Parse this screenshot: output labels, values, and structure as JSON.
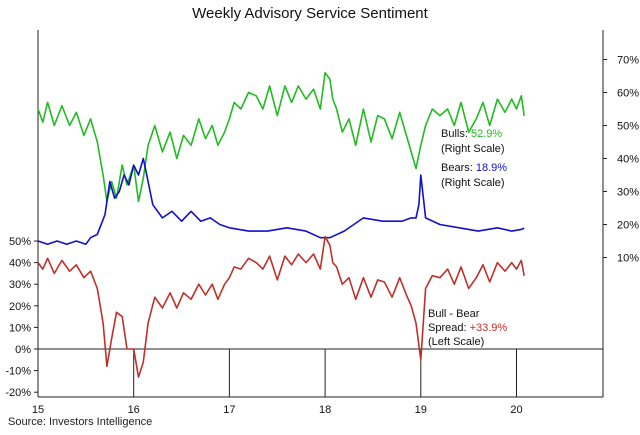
{
  "chart_data": {
    "type": "line",
    "title": "Weekly Advisory Service Sentiment",
    "source": "Source: Investors Intelligence",
    "x_ticks": [
      "15",
      "16",
      "17",
      "18",
      "19",
      "20"
    ],
    "x_range": [
      2015.0,
      2020.25
    ],
    "right_axis": {
      "ticks": [
        "10%",
        "20%",
        "30%",
        "40%",
        "50%",
        "60%",
        "70%"
      ],
      "range": [
        0,
        70
      ]
    },
    "left_axis": {
      "ticks": [
        "-20%",
        "-10%",
        "0%",
        "10%",
        "20%",
        "30%",
        "40%",
        "50%"
      ],
      "range": [
        -20,
        50
      ]
    },
    "series": [
      {
        "name": "Bulls",
        "axis": "right",
        "color": "#22bb22",
        "x": [
          2015.0,
          2015.05,
          2015.1,
          2015.17,
          2015.25,
          2015.33,
          2015.4,
          2015.48,
          2015.55,
          2015.62,
          2015.68,
          2015.72,
          2015.77,
          2015.82,
          2015.88,
          2015.93,
          2016.0,
          2016.05,
          2016.1,
          2016.15,
          2016.22,
          2016.3,
          2016.38,
          2016.45,
          2016.52,
          2016.6,
          2016.68,
          2016.75,
          2016.82,
          2016.88,
          2016.95,
          2017.0,
          2017.05,
          2017.12,
          2017.2,
          2017.28,
          2017.35,
          2017.42,
          2017.5,
          2017.58,
          2017.65,
          2017.72,
          2017.8,
          2017.88,
          2017.95,
          2018.0,
          2018.05,
          2018.08,
          2018.12,
          2018.18,
          2018.25,
          2018.32,
          2018.4,
          2018.48,
          2018.55,
          2018.62,
          2018.7,
          2018.78,
          2018.85,
          2018.9,
          2018.95,
          2019.0,
          2019.05,
          2019.12,
          2019.2,
          2019.28,
          2019.35,
          2019.42,
          2019.5,
          2019.58,
          2019.65,
          2019.72,
          2019.8,
          2019.88,
          2019.95,
          2020.0,
          2020.05,
          2020.08
        ],
        "values": [
          55,
          51,
          57,
          50,
          56,
          50,
          54,
          47,
          52,
          45,
          35,
          27,
          33,
          28,
          38,
          32,
          38,
          27,
          34,
          44,
          50,
          42,
          48,
          40,
          47,
          44,
          52,
          46,
          50,
          44,
          48,
          52,
          57,
          55,
          60,
          59,
          55,
          62,
          53,
          62,
          57,
          62,
          58,
          61,
          55,
          66,
          64,
          58,
          55,
          48,
          52,
          44,
          55,
          45,
          53,
          52,
          46,
          54,
          47,
          42,
          37,
          44,
          50,
          55,
          53,
          55,
          50,
          57,
          48,
          52,
          57,
          50,
          58,
          54,
          58,
          55,
          59,
          52.9
        ]
      },
      {
        "name": "Bears",
        "axis": "right",
        "color": "#1111cc",
        "x": [
          2015.0,
          2015.1,
          2015.2,
          2015.3,
          2015.4,
          2015.5,
          2015.55,
          2015.62,
          2015.7,
          2015.75,
          2015.8,
          2015.85,
          2015.9,
          2015.95,
          2016.0,
          2016.05,
          2016.1,
          2016.15,
          2016.2,
          2016.3,
          2016.4,
          2016.5,
          2016.6,
          2016.7,
          2016.8,
          2016.9,
          2017.0,
          2017.2,
          2017.4,
          2017.6,
          2017.8,
          2017.95,
          2018.05,
          2018.2,
          2018.4,
          2018.6,
          2018.8,
          2018.9,
          2018.95,
          2018.98,
          2019.0,
          2019.05,
          2019.2,
          2019.4,
          2019.6,
          2019.8,
          2019.95,
          2020.05,
          2020.08
        ],
        "values": [
          15,
          14,
          15,
          14,
          15,
          14,
          16,
          17,
          23,
          33,
          28,
          30,
          35,
          32,
          38,
          35,
          40,
          33,
          26,
          22,
          24,
          21,
          24,
          21,
          22,
          20,
          19,
          18,
          18,
          19,
          18,
          16,
          16,
          18,
          22,
          21,
          21,
          22,
          22,
          26,
          35,
          22,
          20,
          19,
          18,
          19,
          18,
          18.5,
          18.9
        ]
      },
      {
        "name": "Bull - Bear Spread",
        "axis": "left",
        "color": "#c0302a",
        "x": [
          2015.0,
          2015.05,
          2015.1,
          2015.17,
          2015.25,
          2015.33,
          2015.4,
          2015.48,
          2015.55,
          2015.62,
          2015.68,
          2015.72,
          2015.77,
          2015.82,
          2015.88,
          2015.93,
          2016.0,
          2016.05,
          2016.1,
          2016.15,
          2016.22,
          2016.3,
          2016.38,
          2016.45,
          2016.52,
          2016.6,
          2016.68,
          2016.75,
          2016.82,
          2016.88,
          2016.95,
          2017.0,
          2017.05,
          2017.12,
          2017.2,
          2017.28,
          2017.35,
          2017.42,
          2017.5,
          2017.58,
          2017.65,
          2017.72,
          2017.8,
          2017.88,
          2017.95,
          2018.0,
          2018.05,
          2018.08,
          2018.12,
          2018.18,
          2018.25,
          2018.32,
          2018.4,
          2018.48,
          2018.55,
          2018.62,
          2018.7,
          2018.78,
          2018.85,
          2018.9,
          2018.95,
          2019.0,
          2019.05,
          2019.12,
          2019.2,
          2019.28,
          2019.35,
          2019.42,
          2019.5,
          2019.58,
          2019.65,
          2019.72,
          2019.8,
          2019.88,
          2019.95,
          2020.0,
          2020.05,
          2020.08
        ],
        "values": [
          40,
          37,
          42,
          35,
          41,
          36,
          39,
          33,
          36,
          28,
          12,
          -8,
          5,
          17,
          15,
          0,
          0,
          -13,
          -6,
          12,
          24,
          19,
          26,
          19,
          26,
          23,
          30,
          25,
          30,
          23,
          30,
          33,
          38,
          37,
          42,
          40,
          37,
          43,
          32,
          43,
          39,
          44,
          40,
          44,
          37,
          52,
          48,
          40,
          38,
          30,
          33,
          23,
          33,
          24,
          32,
          31,
          24,
          33,
          25,
          20,
          12,
          -5,
          28,
          34,
          33,
          37,
          30,
          38,
          28,
          33,
          39,
          31,
          40,
          36,
          40,
          37,
          41,
          33.9
        ]
      }
    ],
    "annotations": {
      "bulls": {
        "label": "Bulls:",
        "value": "52.9%",
        "scale": "(Right Scale)"
      },
      "bears": {
        "label": "Bears:",
        "value": "18.9%",
        "scale": "(Right Scale)"
      },
      "spread": {
        "label": "Bull - Bear",
        "label2": "Spread:",
        "value": "+33.9%",
        "scale": "(Left Scale)"
      }
    },
    "grid": false,
    "legend": "annotations-right"
  }
}
